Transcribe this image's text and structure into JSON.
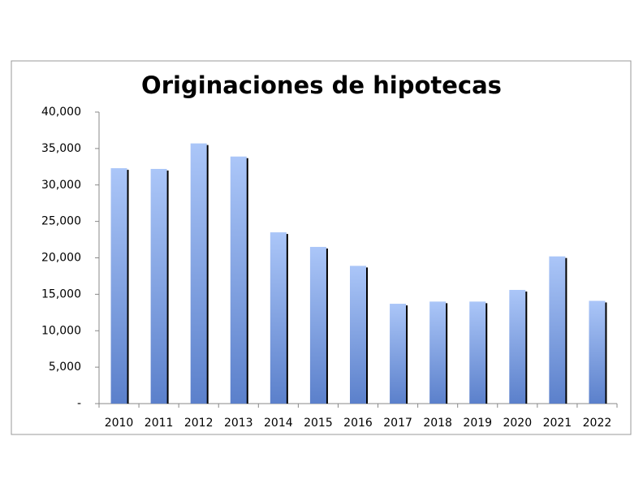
{
  "chart_data": {
    "type": "bar",
    "title": "Originaciones de hipotecas",
    "categories": [
      "2010",
      "2011",
      "2012",
      "2013",
      "2014",
      "2015",
      "2016",
      "2017",
      "2018",
      "2019",
      "2020",
      "2021",
      "2022"
    ],
    "values": [
      32300,
      32200,
      35700,
      33900,
      23500,
      21500,
      18900,
      13700,
      14000,
      14000,
      15600,
      20200,
      14100
    ],
    "ylim": [
      0,
      40000
    ],
    "yticks": [
      {
        "value": 0,
        "label": "-"
      },
      {
        "value": 5000,
        "label": "5,000"
      },
      {
        "value": 10000,
        "label": "10,000"
      },
      {
        "value": 15000,
        "label": "15,000"
      },
      {
        "value": 20000,
        "label": "20,000"
      },
      {
        "value": 25000,
        "label": "25,000"
      },
      {
        "value": 30000,
        "label": "30,000"
      },
      {
        "value": 35000,
        "label": "35,000"
      },
      {
        "value": 40000,
        "label": "40,000"
      }
    ]
  }
}
